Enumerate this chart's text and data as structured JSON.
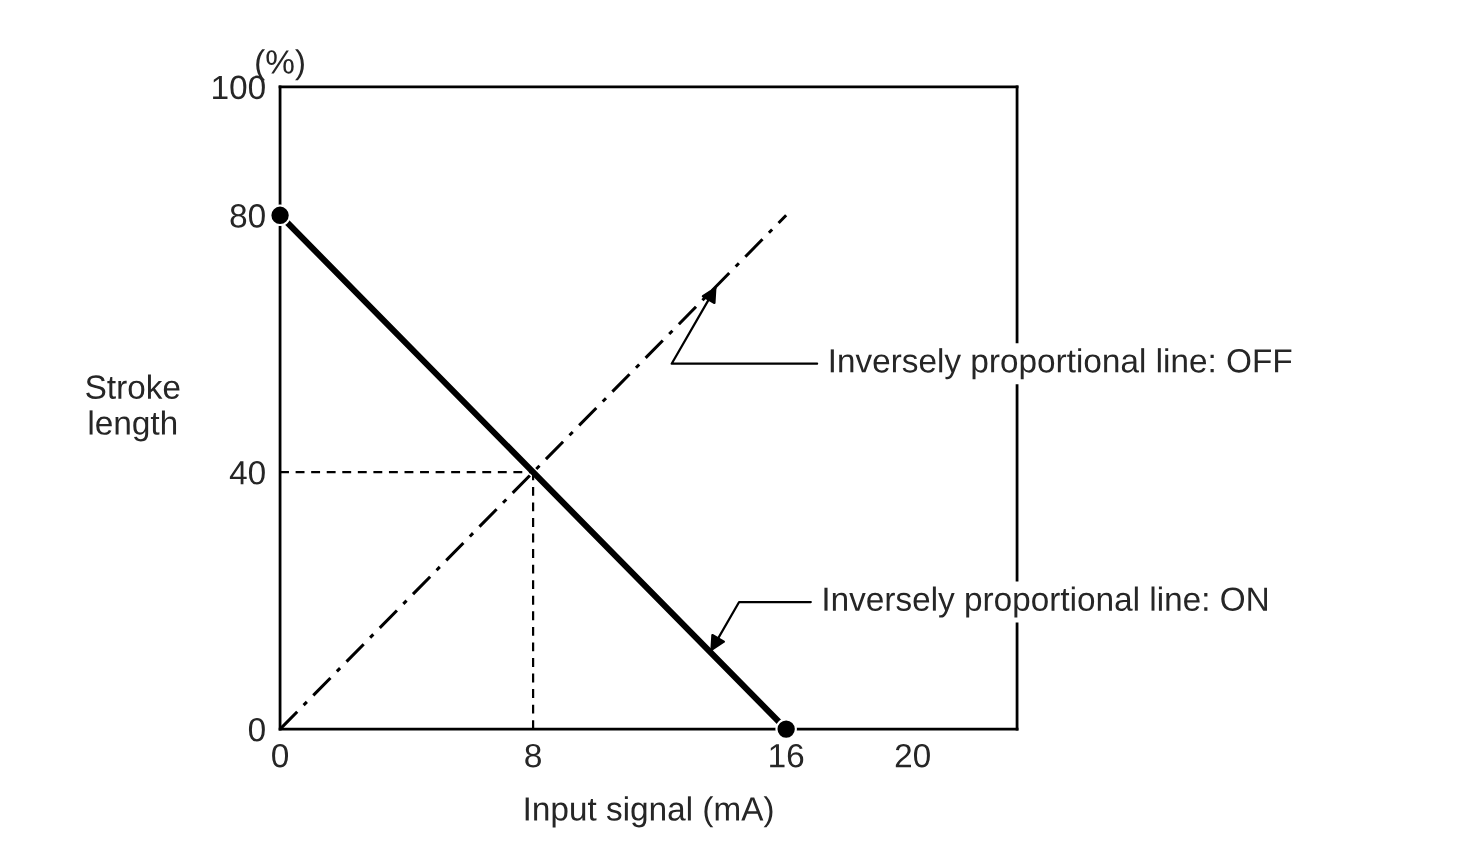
{
  "chart_data": {
    "type": "line",
    "xlabel": "Input signal (mA)",
    "ylabel": "Stroke\nlength",
    "xlim": [
      0,
      23.3
    ],
    "ylim": [
      0,
      100
    ],
    "xticks": [
      0,
      8,
      16,
      20
    ],
    "yticks": [
      0,
      40,
      80,
      100
    ],
    "grid": false,
    "legend": false,
    "series": [
      {
        "x": [
          0,
          16
        ],
        "values": [
          80,
          0
        ],
        "color": "#000000",
        "marker": "circle",
        "line_style": "solid"
      },
      {
        "x": [
          0,
          16
        ],
        "values": [
          0,
          80
        ],
        "color": "#000000",
        "line_style": "dashdot"
      },
      {
        "x": [
          0,
          8
        ],
        "values": [
          40,
          40
        ],
        "color": "#000000",
        "line_style": "dashed"
      },
      {
        "x": [
          8,
          8
        ],
        "values": [
          0,
          40
        ],
        "color": "#000000",
        "line_style": "dashed"
      }
    ],
    "annotations": [
      "(%)",
      {
        "text": "Inversely proportional line: OFF",
        "x": 13.8,
        "y": 69
      },
      {
        "text": "Inversely proportional line: ON",
        "x": 13.6,
        "y": 12
      }
    ]
  }
}
